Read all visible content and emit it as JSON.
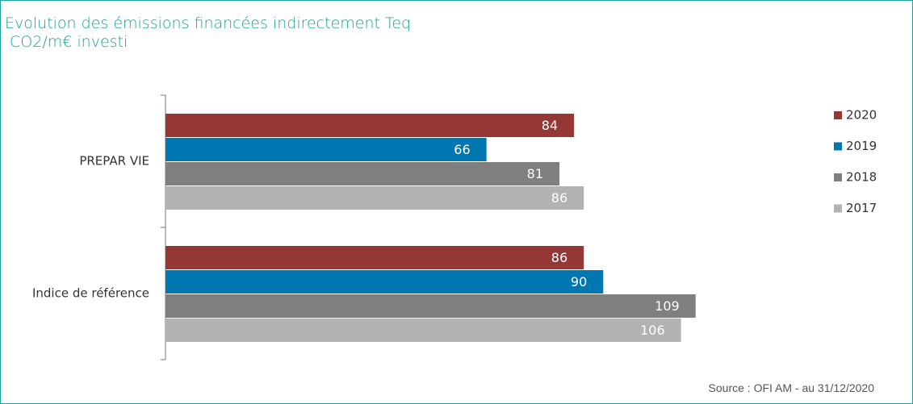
{
  "chart_data": {
    "type": "bar",
    "orientation": "horizontal",
    "title": "Evolution des émissions financées indirectement Teq\n CO2/m€ investi",
    "source": "Source : OFI AM - au 31/12/2020",
    "categories": [
      "PREPAR VIE",
      "Indice de référence"
    ],
    "series": [
      {
        "name": "2020",
        "color": "#953735",
        "values": [
          84,
          86
        ]
      },
      {
        "name": "2019",
        "color": "#0077b0",
        "values": [
          66,
          90
        ]
      },
      {
        "name": "2018",
        "color": "#7f7f7f",
        "values": [
          81,
          109
        ]
      },
      {
        "name": "2017",
        "color": "#b2b2b2",
        "values": [
          86,
          106
        ]
      }
    ],
    "legend": "right"
  }
}
